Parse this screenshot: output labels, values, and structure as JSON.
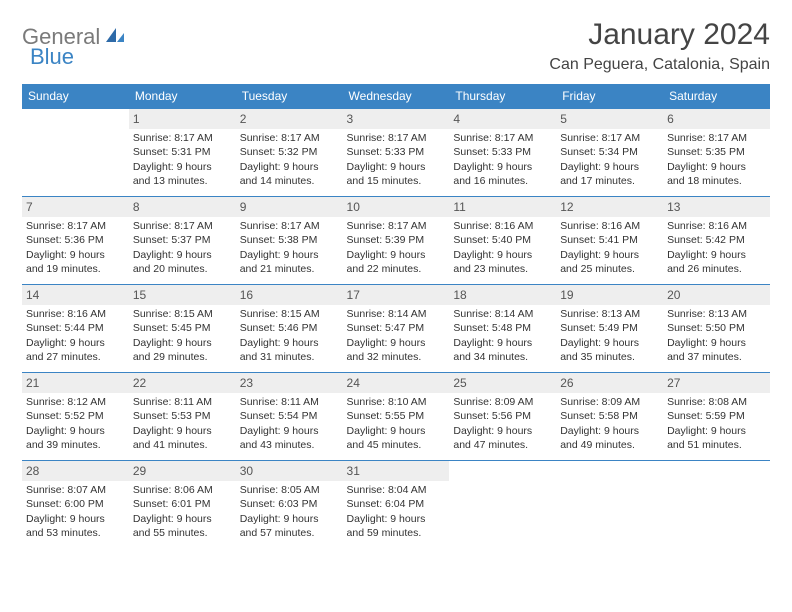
{
  "logo": {
    "text1": "General",
    "text2": "Blue"
  },
  "title": "January 2024",
  "location": "Can Peguera, Catalonia, Spain",
  "colors": {
    "header_bg": "#3b84c4",
    "header_text": "#ffffff",
    "daynum_bg": "#eeeeee",
    "border": "#3b84c4",
    "logo_gray": "#7a7a7a",
    "logo_blue": "#3b84c4"
  },
  "weekdays": [
    "Sunday",
    "Monday",
    "Tuesday",
    "Wednesday",
    "Thursday",
    "Friday",
    "Saturday"
  ],
  "weeks": [
    [
      {
        "day": "",
        "lines": [
          "",
          "",
          "",
          ""
        ]
      },
      {
        "day": "1",
        "lines": [
          "Sunrise: 8:17 AM",
          "Sunset: 5:31 PM",
          "Daylight: 9 hours",
          "and 13 minutes."
        ]
      },
      {
        "day": "2",
        "lines": [
          "Sunrise: 8:17 AM",
          "Sunset: 5:32 PM",
          "Daylight: 9 hours",
          "and 14 minutes."
        ]
      },
      {
        "day": "3",
        "lines": [
          "Sunrise: 8:17 AM",
          "Sunset: 5:33 PM",
          "Daylight: 9 hours",
          "and 15 minutes."
        ]
      },
      {
        "day": "4",
        "lines": [
          "Sunrise: 8:17 AM",
          "Sunset: 5:33 PM",
          "Daylight: 9 hours",
          "and 16 minutes."
        ]
      },
      {
        "day": "5",
        "lines": [
          "Sunrise: 8:17 AM",
          "Sunset: 5:34 PM",
          "Daylight: 9 hours",
          "and 17 minutes."
        ]
      },
      {
        "day": "6",
        "lines": [
          "Sunrise: 8:17 AM",
          "Sunset: 5:35 PM",
          "Daylight: 9 hours",
          "and 18 minutes."
        ]
      }
    ],
    [
      {
        "day": "7",
        "lines": [
          "Sunrise: 8:17 AM",
          "Sunset: 5:36 PM",
          "Daylight: 9 hours",
          "and 19 minutes."
        ]
      },
      {
        "day": "8",
        "lines": [
          "Sunrise: 8:17 AM",
          "Sunset: 5:37 PM",
          "Daylight: 9 hours",
          "and 20 minutes."
        ]
      },
      {
        "day": "9",
        "lines": [
          "Sunrise: 8:17 AM",
          "Sunset: 5:38 PM",
          "Daylight: 9 hours",
          "and 21 minutes."
        ]
      },
      {
        "day": "10",
        "lines": [
          "Sunrise: 8:17 AM",
          "Sunset: 5:39 PM",
          "Daylight: 9 hours",
          "and 22 minutes."
        ]
      },
      {
        "day": "11",
        "lines": [
          "Sunrise: 8:16 AM",
          "Sunset: 5:40 PM",
          "Daylight: 9 hours",
          "and 23 minutes."
        ]
      },
      {
        "day": "12",
        "lines": [
          "Sunrise: 8:16 AM",
          "Sunset: 5:41 PM",
          "Daylight: 9 hours",
          "and 25 minutes."
        ]
      },
      {
        "day": "13",
        "lines": [
          "Sunrise: 8:16 AM",
          "Sunset: 5:42 PM",
          "Daylight: 9 hours",
          "and 26 minutes."
        ]
      }
    ],
    [
      {
        "day": "14",
        "lines": [
          "Sunrise: 8:16 AM",
          "Sunset: 5:44 PM",
          "Daylight: 9 hours",
          "and 27 minutes."
        ]
      },
      {
        "day": "15",
        "lines": [
          "Sunrise: 8:15 AM",
          "Sunset: 5:45 PM",
          "Daylight: 9 hours",
          "and 29 minutes."
        ]
      },
      {
        "day": "16",
        "lines": [
          "Sunrise: 8:15 AM",
          "Sunset: 5:46 PM",
          "Daylight: 9 hours",
          "and 31 minutes."
        ]
      },
      {
        "day": "17",
        "lines": [
          "Sunrise: 8:14 AM",
          "Sunset: 5:47 PM",
          "Daylight: 9 hours",
          "and 32 minutes."
        ]
      },
      {
        "day": "18",
        "lines": [
          "Sunrise: 8:14 AM",
          "Sunset: 5:48 PM",
          "Daylight: 9 hours",
          "and 34 minutes."
        ]
      },
      {
        "day": "19",
        "lines": [
          "Sunrise: 8:13 AM",
          "Sunset: 5:49 PM",
          "Daylight: 9 hours",
          "and 35 minutes."
        ]
      },
      {
        "day": "20",
        "lines": [
          "Sunrise: 8:13 AM",
          "Sunset: 5:50 PM",
          "Daylight: 9 hours",
          "and 37 minutes."
        ]
      }
    ],
    [
      {
        "day": "21",
        "lines": [
          "Sunrise: 8:12 AM",
          "Sunset: 5:52 PM",
          "Daylight: 9 hours",
          "and 39 minutes."
        ]
      },
      {
        "day": "22",
        "lines": [
          "Sunrise: 8:11 AM",
          "Sunset: 5:53 PM",
          "Daylight: 9 hours",
          "and 41 minutes."
        ]
      },
      {
        "day": "23",
        "lines": [
          "Sunrise: 8:11 AM",
          "Sunset: 5:54 PM",
          "Daylight: 9 hours",
          "and 43 minutes."
        ]
      },
      {
        "day": "24",
        "lines": [
          "Sunrise: 8:10 AM",
          "Sunset: 5:55 PM",
          "Daylight: 9 hours",
          "and 45 minutes."
        ]
      },
      {
        "day": "25",
        "lines": [
          "Sunrise: 8:09 AM",
          "Sunset: 5:56 PM",
          "Daylight: 9 hours",
          "and 47 minutes."
        ]
      },
      {
        "day": "26",
        "lines": [
          "Sunrise: 8:09 AM",
          "Sunset: 5:58 PM",
          "Daylight: 9 hours",
          "and 49 minutes."
        ]
      },
      {
        "day": "27",
        "lines": [
          "Sunrise: 8:08 AM",
          "Sunset: 5:59 PM",
          "Daylight: 9 hours",
          "and 51 minutes."
        ]
      }
    ],
    [
      {
        "day": "28",
        "lines": [
          "Sunrise: 8:07 AM",
          "Sunset: 6:00 PM",
          "Daylight: 9 hours",
          "and 53 minutes."
        ]
      },
      {
        "day": "29",
        "lines": [
          "Sunrise: 8:06 AM",
          "Sunset: 6:01 PM",
          "Daylight: 9 hours",
          "and 55 minutes."
        ]
      },
      {
        "day": "30",
        "lines": [
          "Sunrise: 8:05 AM",
          "Sunset: 6:03 PM",
          "Daylight: 9 hours",
          "and 57 minutes."
        ]
      },
      {
        "day": "31",
        "lines": [
          "Sunrise: 8:04 AM",
          "Sunset: 6:04 PM",
          "Daylight: 9 hours",
          "and 59 minutes."
        ]
      },
      {
        "day": "",
        "lines": [
          "",
          "",
          "",
          ""
        ]
      },
      {
        "day": "",
        "lines": [
          "",
          "",
          "",
          ""
        ]
      },
      {
        "day": "",
        "lines": [
          "",
          "",
          "",
          ""
        ]
      }
    ]
  ]
}
